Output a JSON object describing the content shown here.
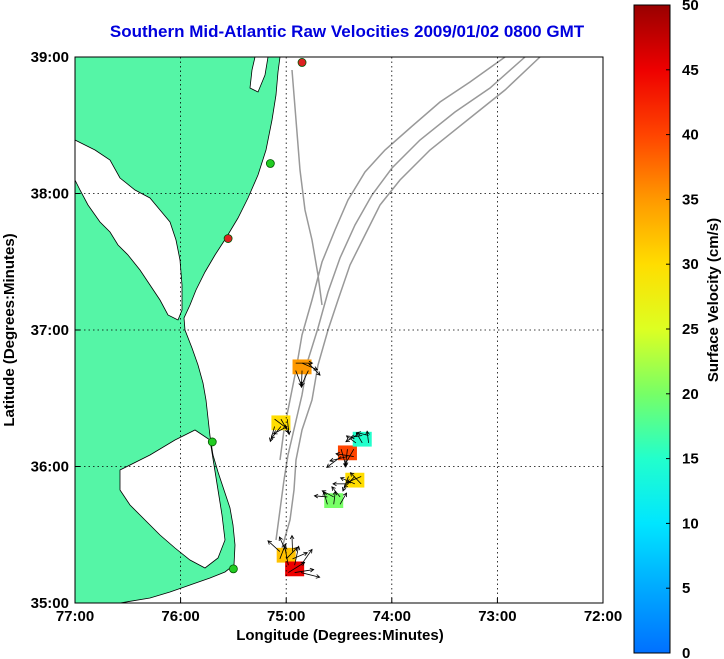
{
  "title": "Southern Mid-Atlantic Raw Velocities 2009/01/02 0800 GMT",
  "xlabel": "Longitude (Degrees:Minutes)",
  "ylabel": "Latitude (Degrees:Minutes)",
  "colorbar_label": "Surface Velocity (cm/s)",
  "x_ticks": [
    "77:00",
    "76:00",
    "75:00",
    "74:00",
    "73:00",
    "72:00"
  ],
  "y_ticks": [
    "39:00",
    "38:00",
    "37:00",
    "36:00",
    "35:00"
  ],
  "colorbar_ticks": [
    "0",
    "5",
    "10",
    "15",
    "20",
    "25",
    "30",
    "35",
    "40",
    "45",
    "50"
  ],
  "colors": {
    "title": "#0000dd",
    "land": "#55f5a6",
    "bathymetry": "#999999",
    "station_green": "#22cc22",
    "station_red": "#dd2222"
  },
  "chart_data": {
    "type": "map",
    "lon_range": [
      -77,
      -72
    ],
    "lat_range": [
      35,
      39
    ],
    "colorbar_range": [
      0,
      50
    ],
    "grid": true,
    "velocity_patches": [
      {
        "lon": -74.85,
        "lat": 36.73,
        "speed": 35
      },
      {
        "lon": -75.05,
        "lat": 36.32,
        "speed": 30
      },
      {
        "lon": -74.42,
        "lat": 36.1,
        "speed": 40
      },
      {
        "lon": -74.35,
        "lat": 35.9,
        "speed": 30
      },
      {
        "lon": -74.28,
        "lat": 36.2,
        "speed": 15
      },
      {
        "lon": -74.55,
        "lat": 35.75,
        "speed": 20
      },
      {
        "lon": -75.0,
        "lat": 35.35,
        "speed": 32
      },
      {
        "lon": -74.92,
        "lat": 35.25,
        "speed": 45
      }
    ],
    "stations": [
      {
        "lon": -74.85,
        "lat": 38.96,
        "color": "red"
      },
      {
        "lon": -75.15,
        "lat": 38.22,
        "color": "green"
      },
      {
        "lon": -75.55,
        "lat": 37.67,
        "color": "red"
      },
      {
        "lon": -75.7,
        "lat": 36.18,
        "color": "green"
      },
      {
        "lon": -75.5,
        "lat": 35.25,
        "color": "green"
      }
    ]
  }
}
